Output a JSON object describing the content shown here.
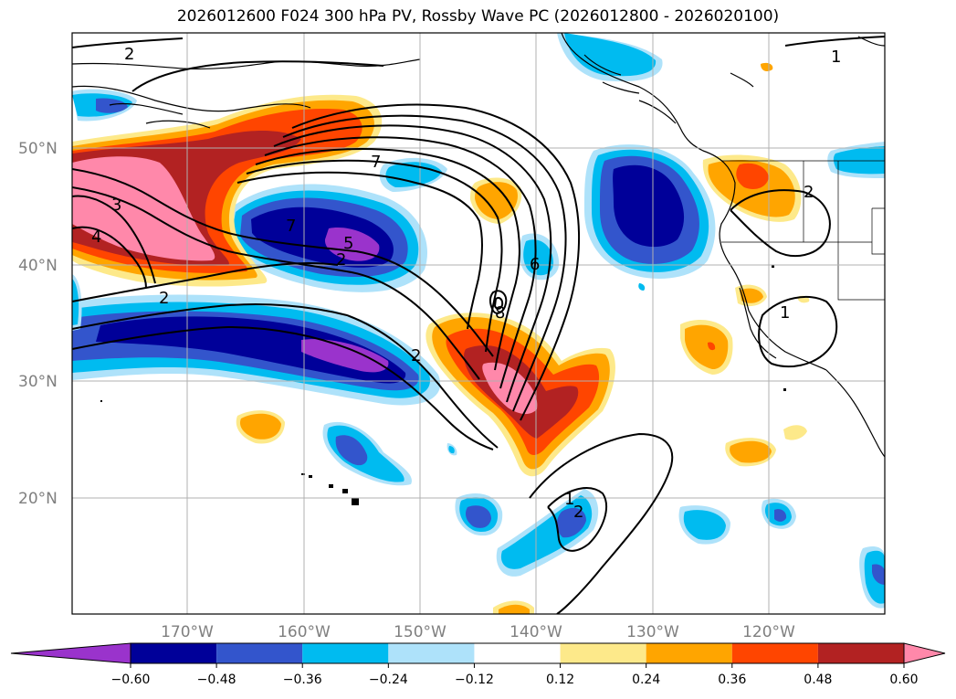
{
  "title": "2026012600 F024 300 hPa PV, Rossby Wave PC (2026012800 - 2026020100)",
  "lat_labels": [
    "50°N",
    "40°N",
    "30°N",
    "20°N"
  ],
  "lon_labels": [
    "170°W",
    "160°W",
    "150°W",
    "140°W",
    "130°W",
    "120°W"
  ],
  "colorbar": {
    "colors": [
      "#9a33cc",
      "#000099",
      "#3355cc",
      "#00bbf0",
      "#aee2fa",
      "#ffffff",
      "#fde98a",
      "#ffa500",
      "#ff4500",
      "#b22222",
      "#ff88aa"
    ],
    "ticks": [
      "−0.60",
      "−0.48",
      "−0.36",
      "−0.24",
      "−0.12",
      "0.12",
      "0.24",
      "0.36",
      "0.48",
      "0.60"
    ]
  },
  "contour_labels": [
    "2",
    "2",
    "7",
    "3",
    "4",
    "2",
    "7",
    "5",
    "2",
    "6",
    "8",
    "2",
    "1",
    "1",
    "1",
    "2"
  ],
  "colors": {
    "purple": "#9a33cc",
    "navy": "#000099",
    "blue": "#3355cc",
    "cyan": "#00bbf0",
    "lightblue": "#aee2fa",
    "yellow": "#fde98a",
    "orange": "#ffa500",
    "redorange": "#ff4500",
    "darkred": "#b22222",
    "pink": "#ff88aa"
  }
}
